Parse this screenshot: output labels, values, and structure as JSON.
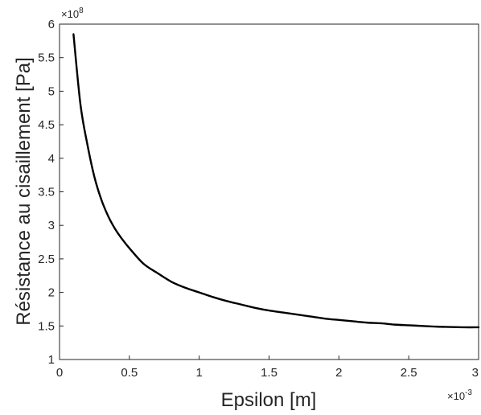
{
  "chart_data": {
    "type": "line",
    "title": "",
    "xlabel": "Epsilon [m]",
    "ylabel": "Résistance au cisaillement [Pa]",
    "x_multiplier_label": "×10",
    "x_multiplier_exp": "-3",
    "y_multiplier_label": "×10",
    "y_multiplier_exp": "8",
    "xlim": [
      0,
      3
    ],
    "ylim": [
      1,
      6
    ],
    "xticks": [
      "0",
      "0.5",
      "1",
      "1.5",
      "2",
      "2.5",
      "3"
    ],
    "yticks": [
      "1",
      "1.5",
      "2",
      "2.5",
      "3",
      "3.5",
      "4",
      "4.5",
      "5",
      "5.5",
      "6"
    ],
    "x_scale": "×10^-3",
    "y_scale": "×10^8",
    "grid": false,
    "line_color": "#000000",
    "series": [
      {
        "x": [
          0.1,
          0.15,
          0.2,
          0.25,
          0.3,
          0.35,
          0.4,
          0.45,
          0.5,
          0.6,
          0.7,
          0.8,
          0.9,
          1.0,
          1.1,
          1.2,
          1.3,
          1.4,
          1.5,
          1.6,
          1.7,
          1.8,
          1.9,
          2.0,
          2.1,
          2.2,
          2.3,
          2.4,
          2.5,
          2.6,
          2.7,
          2.8,
          2.9,
          3.0
        ],
        "y": [
          5.85,
          4.8,
          4.2,
          3.72,
          3.38,
          3.13,
          2.94,
          2.79,
          2.66,
          2.43,
          2.29,
          2.16,
          2.07,
          2.0,
          1.93,
          1.87,
          1.82,
          1.77,
          1.73,
          1.7,
          1.67,
          1.64,
          1.61,
          1.59,
          1.57,
          1.55,
          1.54,
          1.52,
          1.51,
          1.5,
          1.49,
          1.485,
          1.48,
          1.48
        ]
      }
    ]
  }
}
